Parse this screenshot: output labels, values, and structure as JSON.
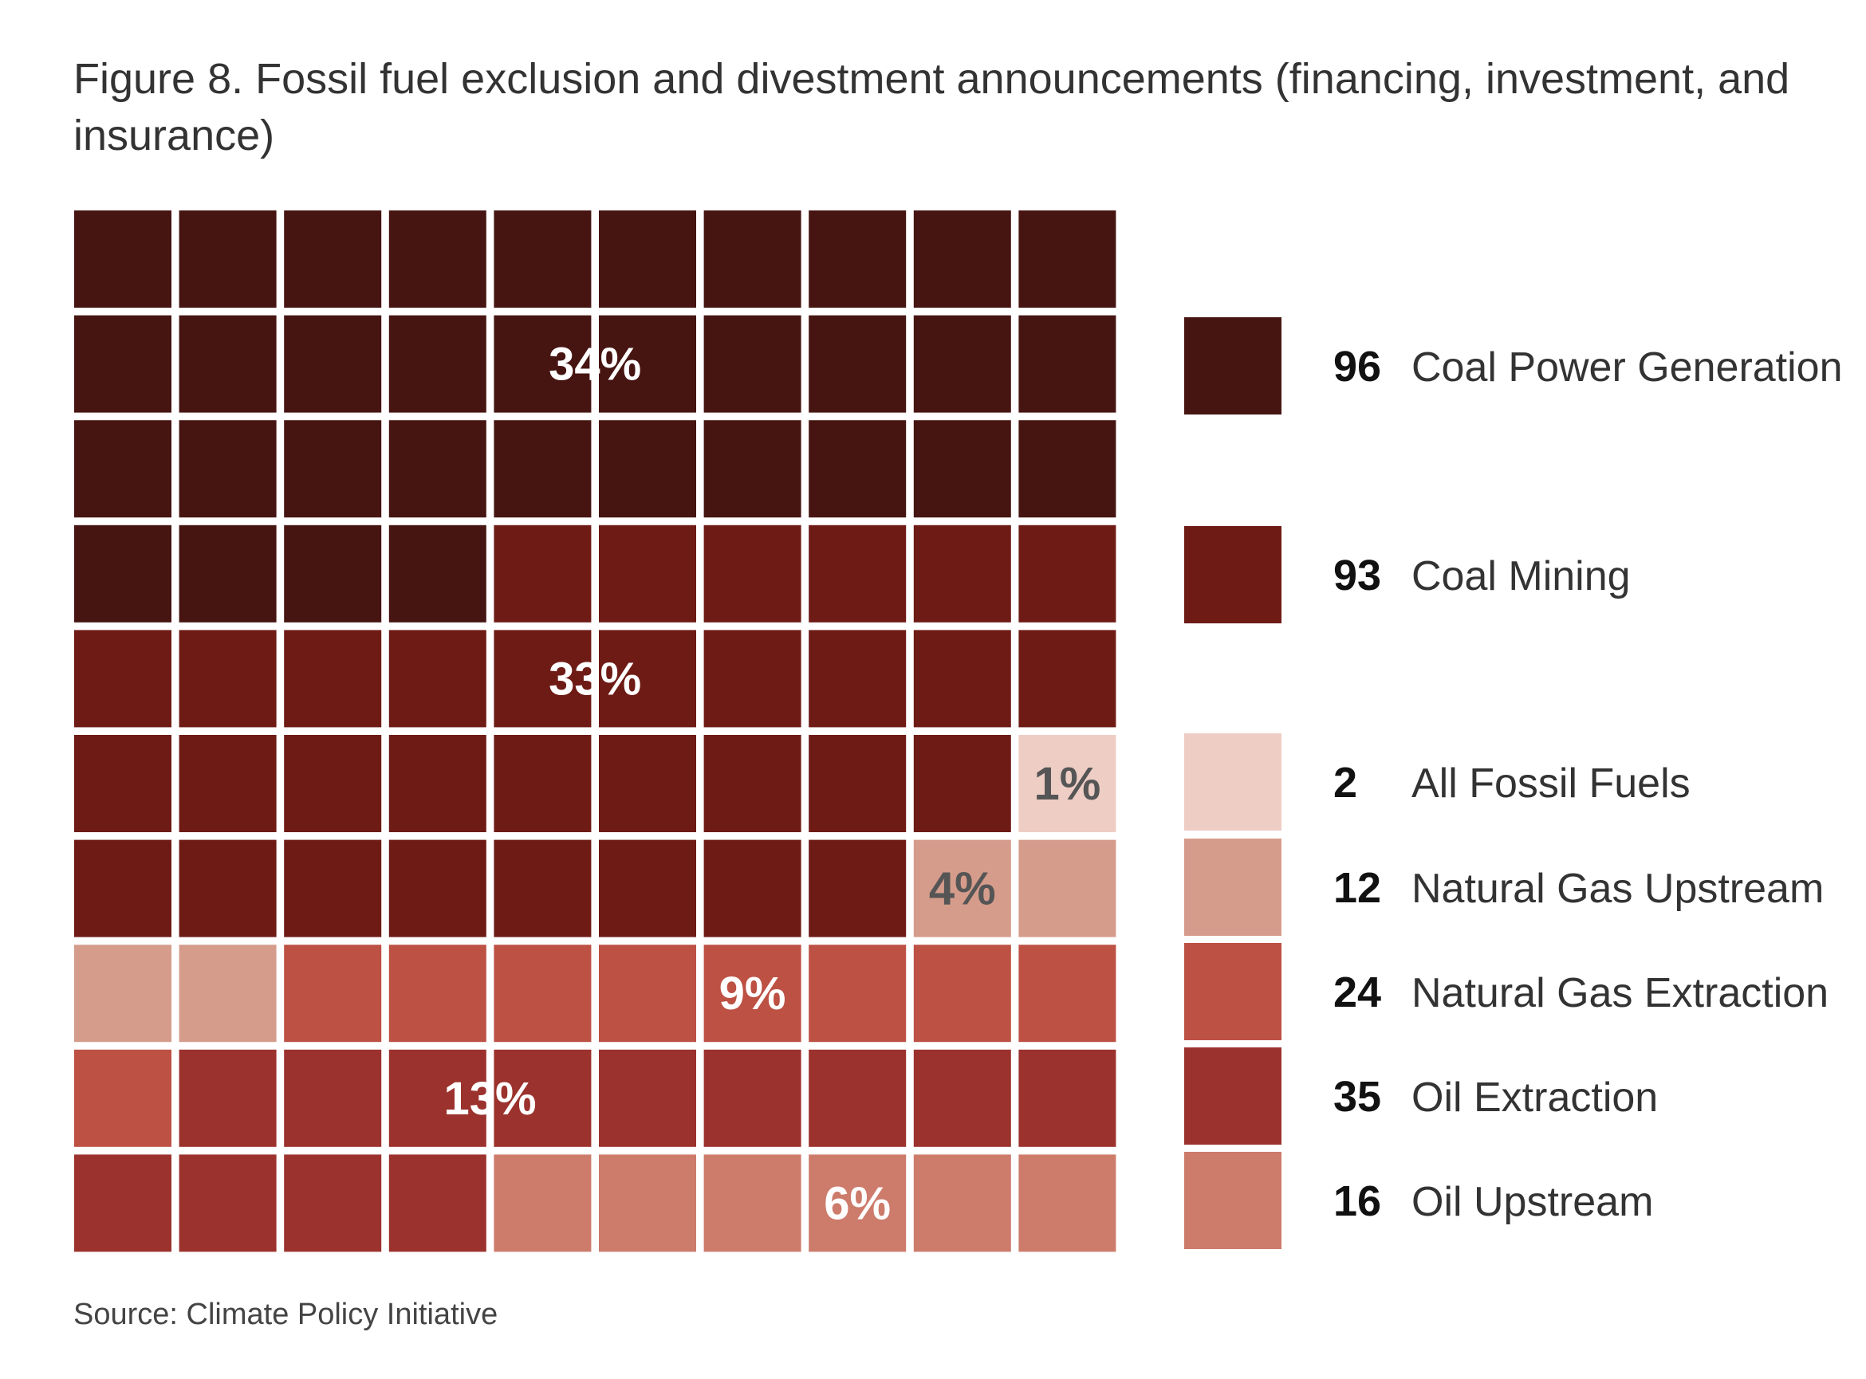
{
  "title": "Figure 8. Fossil fuel exclusion and divestment announcements (financing, investment, and insurance)",
  "source": "Source: Climate Policy Initiative",
  "chart_data": {
    "type": "waffle",
    "grid": {
      "rows": 10,
      "cols": 10
    },
    "series": [
      {
        "name": "Coal Power Generation",
        "count": 96,
        "cells": 34,
        "percent_label": "34%",
        "color": "#461512"
      },
      {
        "name": "Coal Mining",
        "count": 93,
        "cells": 33,
        "percent_label": "33%",
        "color": "#6e1b16"
      },
      {
        "name": "All Fossil Fuels",
        "count": 2,
        "cells": 1,
        "percent_label": "1%",
        "color": "#eecdc5"
      },
      {
        "name": "Natural Gas Upstream",
        "count": 12,
        "cells": 4,
        "percent_label": "4%",
        "color": "#d59c8b"
      },
      {
        "name": "Natural Gas Extraction",
        "count": 24,
        "cells": 9,
        "percent_label": "9%",
        "color": "#bd5144"
      },
      {
        "name": "Oil Extraction",
        "count": 35,
        "cells": 13,
        "percent_label": "13%",
        "color": "#9c322d"
      },
      {
        "name": "Oil  Upstream",
        "count": 16,
        "cells": 6,
        "percent_label": "6%",
        "color": "#cd7b6b"
      }
    ]
  }
}
